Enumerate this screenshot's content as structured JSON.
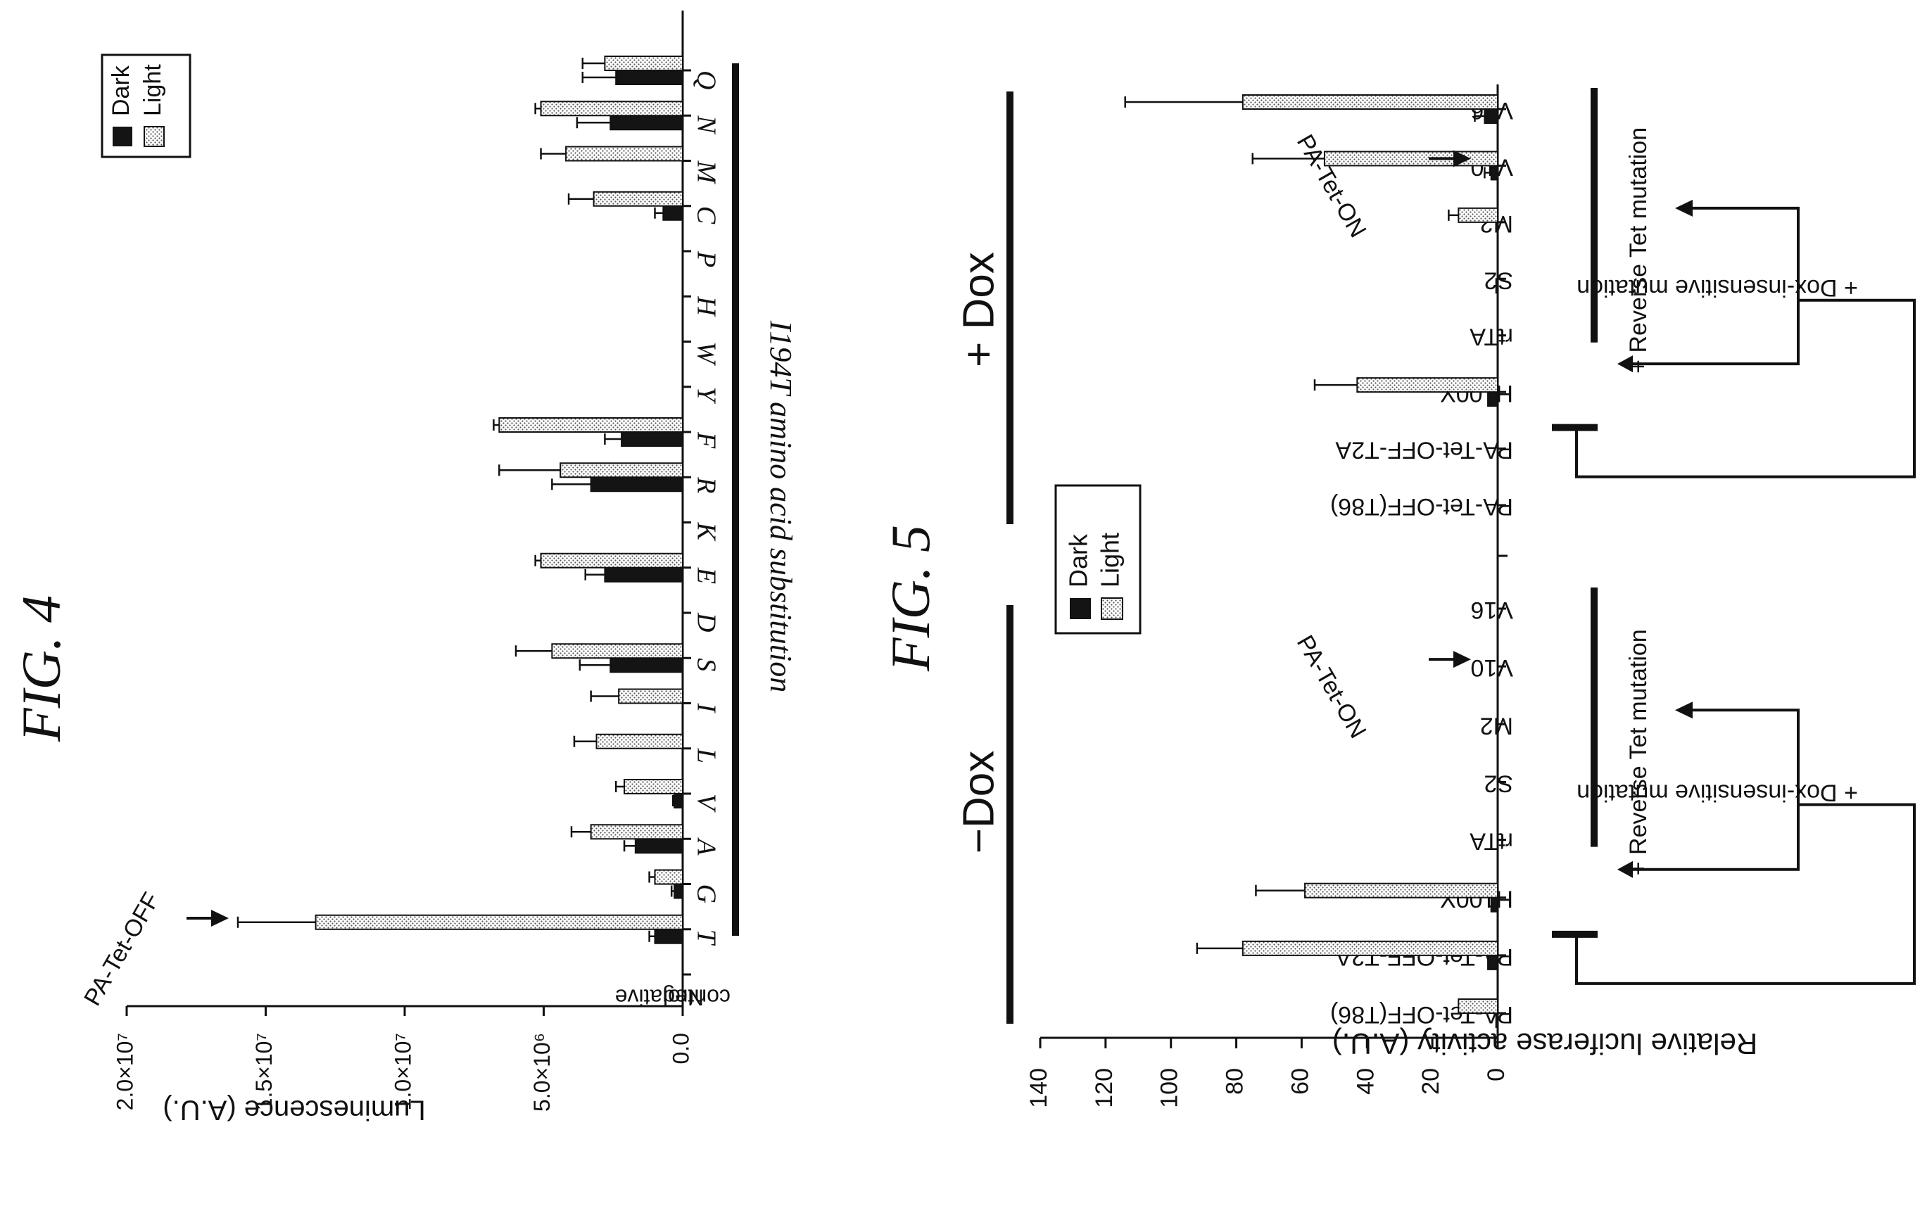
{
  "figures": [
    {
      "id": "fig4",
      "title": "FIG. 4"
    },
    {
      "id": "fig5",
      "title": "FIG. 5"
    }
  ],
  "chart_data": [
    {
      "type": "bar",
      "title": "FIG. 4",
      "xlabel": "I194T amino acid substitution",
      "ylabel": "Luminescence (A.U.)",
      "ylim": [
        0,
        20000000
      ],
      "yticks": [
        "0.0",
        "5.0×10⁶",
        "1.0×10⁷",
        "1.5×10⁷",
        "2.0×10⁷"
      ],
      "ytick_values": [
        0,
        5000000,
        10000000,
        15000000,
        20000000
      ],
      "categories": [
        "Negative control",
        "T",
        "G",
        "A",
        "V",
        "L",
        "I",
        "S",
        "D",
        "E",
        "K",
        "R",
        "F",
        "Y",
        "W",
        "H",
        "P",
        "C",
        "M",
        "N",
        "Q"
      ],
      "category_display": [
        "Negative\ncontrol",
        "T",
        "G",
        "A",
        "V",
        "L",
        "I",
        "S",
        "D",
        "E",
        "K",
        "R",
        "F",
        "Y",
        "W",
        "H",
        "P",
        "C",
        "M",
        "N",
        "Q"
      ],
      "series": [
        {
          "name": "Dark",
          "pattern": "solid",
          "values": [
            0,
            1000000,
            300000,
            1700000,
            300000,
            0,
            0,
            2600000,
            0,
            2800000,
            0,
            3300000,
            2200000,
            0,
            0,
            0,
            0,
            700000,
            0,
            2600000,
            2400000
          ],
          "errors": [
            0,
            200000,
            100000,
            400000,
            50000,
            0,
            0,
            1100000,
            0,
            700000,
            0,
            1400000,
            600000,
            0,
            0,
            0,
            0,
            300000,
            0,
            1200000,
            1200000
          ]
        },
        {
          "name": "Light",
          "pattern": "dotted",
          "values": [
            0,
            13200000,
            1000000,
            3300000,
            2100000,
            3100000,
            2300000,
            4700000,
            0,
            5100000,
            0,
            4400000,
            6600000,
            0,
            0,
            0,
            0,
            3200000,
            4200000,
            5100000,
            2800000
          ],
          "errors": [
            0,
            2800000,
            200000,
            700000,
            300000,
            800000,
            1000000,
            1300000,
            0,
            200000,
            0,
            2200000,
            200000,
            0,
            0,
            0,
            0,
            900000,
            900000,
            200000,
            800000
          ]
        }
      ],
      "annotation": "PA-Tet-OFF",
      "legend": [
        "Dark",
        "Light"
      ],
      "legend_position": "top-right"
    },
    {
      "type": "bar",
      "title": "FIG. 5",
      "ylabel": "Relative luciferase activity (A.U.)",
      "ylim": [
        0,
        140
      ],
      "yticks": [
        "0",
        "20",
        "40",
        "60",
        "80",
        "100",
        "120",
        "140"
      ],
      "ytick_values": [
        0,
        20,
        40,
        60,
        80,
        100,
        120,
        140
      ],
      "groups": [
        "−Dox",
        "+ Dox"
      ],
      "categories": [
        "PA-Tet-OFF(T86)",
        "PA-Tet-OFF-T2A",
        "H100Y",
        "rtTA",
        "S2",
        "M2",
        "V10",
        "V16"
      ],
      "series": [
        {
          "name": "Dark",
          "pattern": "solid",
          "values_minus_dox": [
            0.5,
            3,
            2,
            0,
            0,
            0,
            0,
            0
          ],
          "errors_minus_dox": [
            0,
            0,
            0,
            0,
            0,
            0,
            0,
            0
          ],
          "values_plus_dox": [
            0,
            0,
            3,
            0,
            0.5,
            0,
            2,
            4
          ],
          "errors_plus_dox": [
            0,
            0,
            0,
            0,
            0,
            0,
            2,
            3
          ]
        },
        {
          "name": "Light",
          "pattern": "dotted",
          "values_minus_dox": [
            12,
            78,
            59,
            0,
            0,
            0,
            0,
            0
          ],
          "errors_minus_dox": [
            0,
            14,
            15,
            0,
            0,
            0,
            0,
            0
          ],
          "values_plus_dox": [
            0,
            0,
            43,
            0,
            0,
            12,
            53,
            78
          ],
          "errors_plus_dox": [
            0,
            0,
            13,
            0,
            0,
            3,
            22,
            36
          ]
        }
      ],
      "annotations": [
        "PA-Tet-ON",
        "PA-Tet-ON"
      ],
      "bracket_labels": [
        "+ Dox-insensitive mutation",
        "+ Reverse Tet mutation"
      ],
      "legend": [
        "Dark",
        "Light"
      ],
      "legend_position": "center"
    }
  ]
}
